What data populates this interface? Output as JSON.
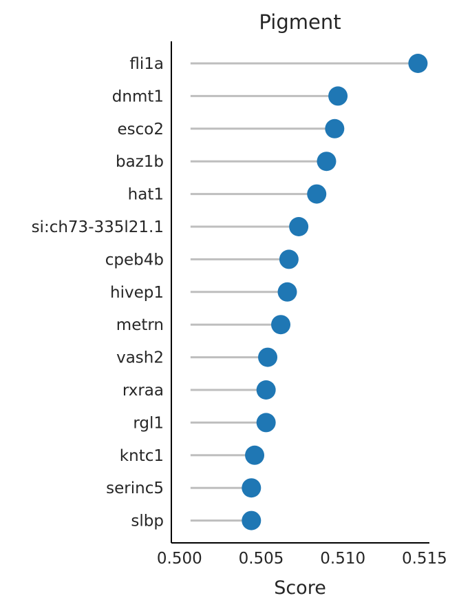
{
  "chart_data": {
    "type": "lollipop",
    "title": "Pigment",
    "xlabel": "Score",
    "ylabel": "",
    "xlim": [
      0.4995,
      0.5153
    ],
    "x_ticks": [
      "0.500",
      "0.505",
      "0.510",
      "0.515"
    ],
    "baseline": 0.5,
    "grid": false,
    "legend": "none",
    "categories": [
      "fli1a",
      "dnmt1",
      "esco2",
      "baz1b",
      "hat1",
      "si:ch73-335l21.1",
      "cpeb4b",
      "hivep1",
      "metrn",
      "vash2",
      "rxraa",
      "rgl1",
      "kntc1",
      "serinc5",
      "slbp"
    ],
    "values": [
      0.5146,
      0.5097,
      0.5095,
      0.509,
      0.5084,
      0.5073,
      0.5067,
      0.5066,
      0.5062,
      0.5054,
      0.5053,
      0.5053,
      0.5046,
      0.5044,
      0.5044
    ],
    "colors": {
      "stem": "#bebebe",
      "marker": "#1f77b4",
      "axis": "#000000"
    }
  }
}
